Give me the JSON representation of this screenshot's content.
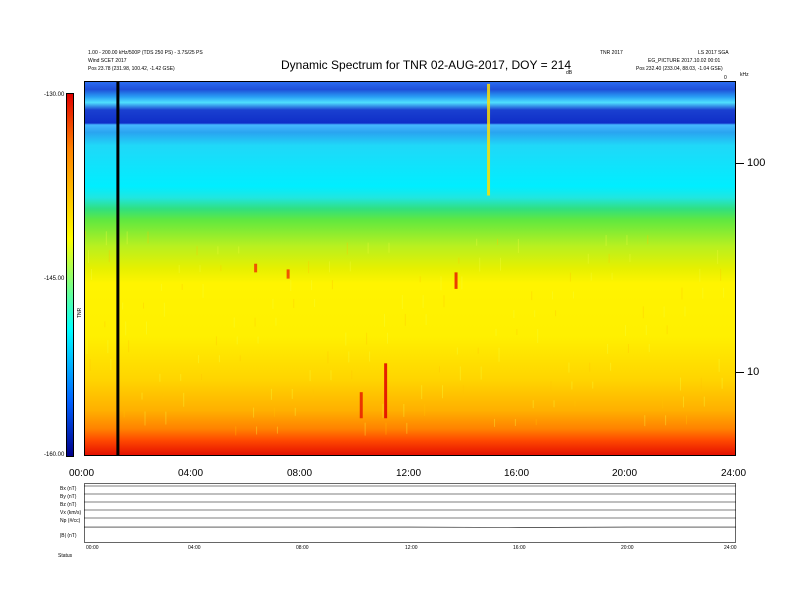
{
  "header": {
    "title": "Dynamic Spectrum for TNR 02-AUG-2017, DOY = 214",
    "left_line1": "1.00 - 200.00 kHz/500P (TDS 250 PS) - 3.7S/25 PS",
    "left_line2": "Wind SCET 2017",
    "left_line3": "Pos    23.78 (231.98, 100.42, -1.42 GSE)",
    "right_line1": "TNR 2017",
    "right_line1b": "LS 2017 SGA",
    "right_line2": "EG_PICTURE 2017.10.02 00:01",
    "right_line3": "Pos    232.40 (233.04, 88.03, -1.04 GSE)",
    "corner_label": "kHz",
    "edge_label": "0",
    "units_label": "dB",
    "cb_axis_label": "TNR"
  },
  "colors": {
    "background": "#ffffff",
    "title_text": "#000000",
    "marker_line": "#000000"
  },
  "chart_data": [
    {
      "type": "heatmap",
      "title": "Dynamic Spectrum for TNR 02-AUG-2017, DOY = 214",
      "x_ticks": [
        "00:00",
        "04:00",
        "08:00",
        "12:00",
        "16:00",
        "20:00",
        "24:00"
      ],
      "x_range_hours": [
        0,
        24
      ],
      "y_scale": "log",
      "y_ticks": [
        "100",
        "10"
      ],
      "y_range_kHz": [
        4,
        245
      ],
      "colorbar": {
        "ticks": [
          "-130.00",
          "-145.00",
          "-160.00"
        ],
        "range": [
          -160,
          -130
        ],
        "axis_label": "TNR"
      },
      "bands": [
        {
          "from_kHz": 4,
          "to_kHz": 5,
          "level": -131
        },
        {
          "from_kHz": 5,
          "to_kHz": 7,
          "level": -136
        },
        {
          "from_kHz": 7,
          "to_kHz": 20,
          "level": -141
        },
        {
          "from_kHz": 20,
          "to_kHz": 45,
          "level": -143
        },
        {
          "from_kHz": 45,
          "to_kHz": 60,
          "level": -147
        },
        {
          "from_kHz": 60,
          "to_kHz": 180,
          "level": -152
        },
        {
          "from_kHz": 180,
          "to_kHz": 245,
          "level": -156
        }
      ],
      "events": [
        {
          "time_h": 11.1,
          "from_kHz": 6,
          "to_kHz": 11,
          "level": -130
        },
        {
          "time_h": 10.2,
          "from_kHz": 6,
          "to_kHz": 8,
          "level": -131
        },
        {
          "time_h": 13.7,
          "from_kHz": 25,
          "to_kHz": 30,
          "level": -131
        },
        {
          "time_h": 6.3,
          "from_kHz": 30,
          "to_kHz": 33,
          "level": -132
        },
        {
          "time_h": 7.5,
          "from_kHz": 28,
          "to_kHz": 31,
          "level": -132
        },
        {
          "time_h": 14.9,
          "from_kHz": 70,
          "to_kHz": 240,
          "level": -140
        }
      ],
      "marker_time_h": 1.2
    },
    {
      "type": "line",
      "x_ticks": [
        "00:00",
        "04:00",
        "08:00",
        "12:00",
        "16:00",
        "20:00",
        "24:00"
      ],
      "series": [
        {
          "name": "Bx (nT)",
          "values": [
            0,
            0,
            0,
            0,
            0,
            0,
            0
          ]
        },
        {
          "name": "By (nT)",
          "values": [
            0,
            0,
            0,
            0,
            0,
            0,
            0
          ]
        },
        {
          "name": "Bz (nT)",
          "values": [
            0,
            0,
            0,
            0,
            0,
            0,
            0
          ]
        },
        {
          "name": "Vx (km/s)",
          "values": [
            0,
            0,
            0,
            0,
            0,
            0,
            0
          ]
        },
        {
          "name": "Np (#/cc)",
          "values": [
            0,
            0,
            0,
            0,
            0,
            0,
            0
          ]
        },
        {
          "name": "|B| (nT)",
          "values": [
            3,
            3,
            3,
            3,
            2,
            3,
            3
          ]
        }
      ],
      "footer_label": "Status"
    }
  ]
}
